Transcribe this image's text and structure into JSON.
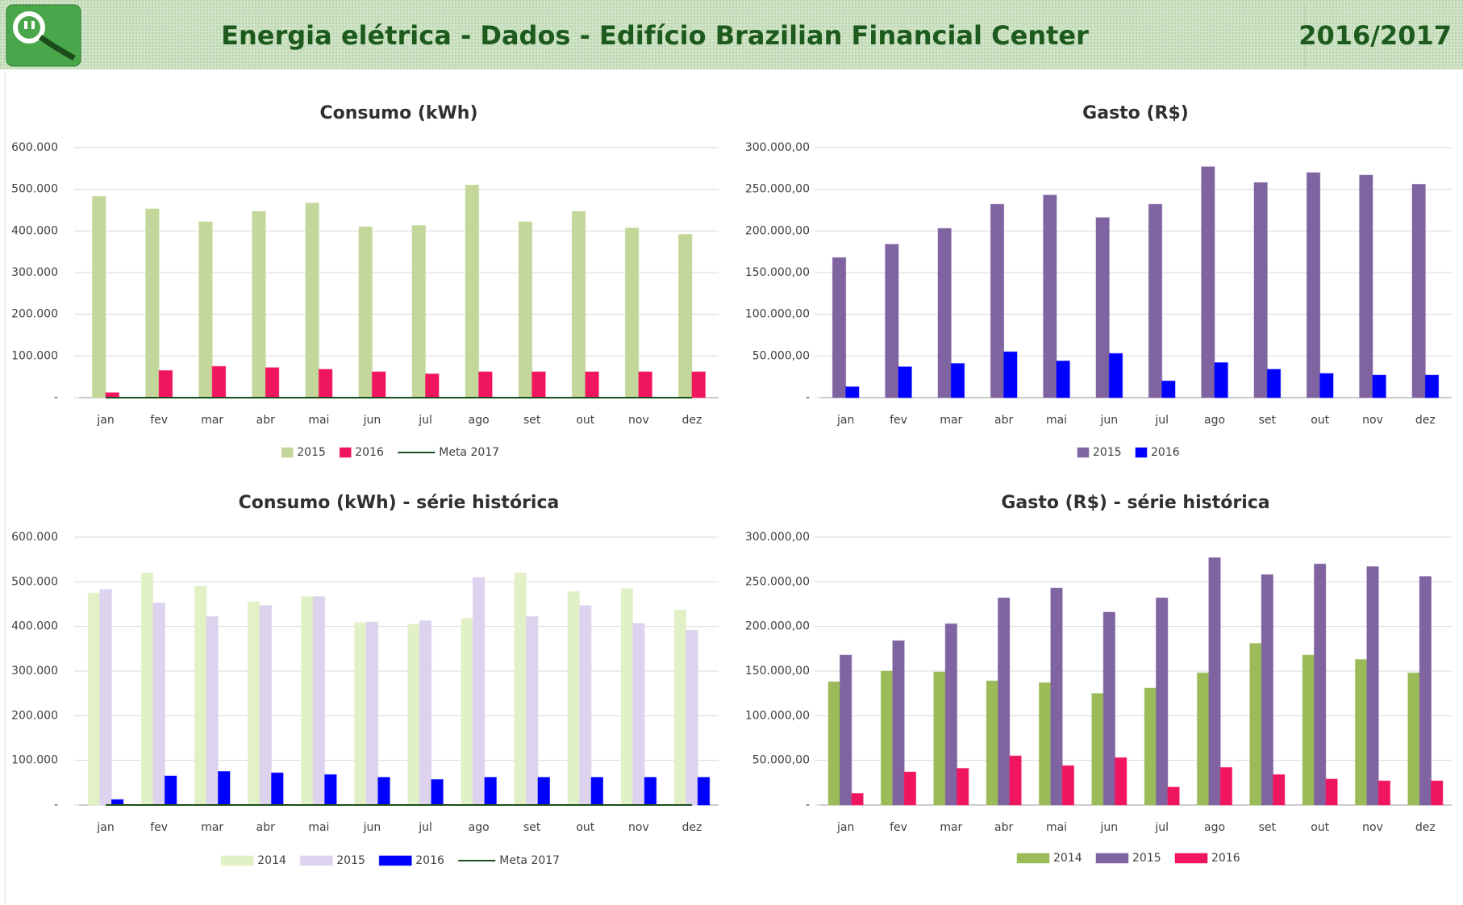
{
  "header": {
    "title": "Energia elétrica - Dados - Edifício Brazilian Financial Center",
    "period": "2016/2017"
  },
  "chart_data": [
    {
      "type": "bar",
      "title": "Consumo (kWh)",
      "categories": [
        "jan",
        "fev",
        "mar",
        "abr",
        "mai",
        "jun",
        "jul",
        "ago",
        "set",
        "out",
        "nov",
        "dez"
      ],
      "series": [
        {
          "name": "2015",
          "color": "#c4d79b",
          "values": [
            483000,
            453000,
            422000,
            447000,
            467000,
            410000,
            413000,
            510000,
            422000,
            447000,
            407000,
            392000
          ]
        },
        {
          "name": "2016",
          "color": "#f0155f",
          "values": [
            12000,
            65000,
            75000,
            72000,
            68000,
            62000,
            57000,
            62000,
            62000,
            62000,
            62000,
            62000
          ]
        },
        {
          "name": "Meta 2017",
          "color": "#1a4d1a",
          "kind": "line",
          "values": [
            0,
            0,
            0,
            0,
            0,
            0,
            0,
            0,
            0,
            0,
            0,
            0
          ]
        }
      ],
      "ylim": [
        0,
        600000
      ],
      "yticks": [
        {
          "value": 0,
          "label": "-"
        },
        {
          "value": 100000,
          "label": "100.000"
        },
        {
          "value": 200000,
          "label": "200.000"
        },
        {
          "value": 300000,
          "label": "300.000"
        },
        {
          "value": 400000,
          "label": "400.000"
        },
        {
          "value": 500000,
          "label": "500.000"
        },
        {
          "value": 600000,
          "label": "600.000"
        }
      ],
      "grid": true
    },
    {
      "type": "bar",
      "title": "Gasto (R$)",
      "categories": [
        "jan",
        "fev",
        "mar",
        "abr",
        "mai",
        "jun",
        "jul",
        "ago",
        "set",
        "out",
        "nov",
        "dez"
      ],
      "series": [
        {
          "name": "2015",
          "color": "#8064a2",
          "values": [
            168000,
            184000,
            203000,
            232000,
            243000,
            216000,
            232000,
            277000,
            258000,
            270000,
            267000,
            256000
          ]
        },
        {
          "name": "2016",
          "color": "#0000ff",
          "values": [
            13000,
            37000,
            41000,
            55000,
            44000,
            53000,
            20000,
            42000,
            34000,
            29000,
            27000,
            27000
          ]
        }
      ],
      "ylim": [
        0,
        300000
      ],
      "yticks": [
        {
          "value": 0,
          "label": "-"
        },
        {
          "value": 50000,
          "label": "50.000,00"
        },
        {
          "value": 100000,
          "label": "100.000,00"
        },
        {
          "value": 150000,
          "label": "150.000,00"
        },
        {
          "value": 200000,
          "label": "200.000,00"
        },
        {
          "value": 250000,
          "label": "250.000,00"
        },
        {
          "value": 300000,
          "label": "300.000,00"
        }
      ],
      "grid": true
    },
    {
      "type": "bar",
      "title": "Consumo (kWh) - série histórica",
      "categories": [
        "jan",
        "fev",
        "mar",
        "abr",
        "mai",
        "jun",
        "jul",
        "ago",
        "set",
        "out",
        "nov",
        "dez"
      ],
      "series": [
        {
          "name": "2014",
          "color": "#e2f0c6",
          "values": [
            475000,
            520000,
            490000,
            455000,
            467000,
            408000,
            405000,
            418000,
            520000,
            478000,
            485000,
            437000
          ]
        },
        {
          "name": "2015",
          "color": "#ddd3ee",
          "values": [
            483000,
            453000,
            422000,
            447000,
            467000,
            410000,
            413000,
            510000,
            422000,
            447000,
            407000,
            392000
          ]
        },
        {
          "name": "2016",
          "color": "#0000ff",
          "values": [
            12000,
            65000,
            75000,
            72000,
            68000,
            62000,
            57000,
            62000,
            62000,
            62000,
            62000,
            62000
          ]
        },
        {
          "name": "Meta 2017",
          "color": "#1a4d1a",
          "kind": "line",
          "values": [
            0,
            0,
            0,
            0,
            0,
            0,
            0,
            0,
            0,
            0,
            0,
            0
          ]
        }
      ],
      "ylim": [
        0,
        600000
      ],
      "yticks": [
        {
          "value": 0,
          "label": "-"
        },
        {
          "value": 100000,
          "label": "100.000"
        },
        {
          "value": 200000,
          "label": "200.000"
        },
        {
          "value": 300000,
          "label": "300.000"
        },
        {
          "value": 400000,
          "label": "400.000"
        },
        {
          "value": 500000,
          "label": "500.000"
        },
        {
          "value": 600000,
          "label": "600.000"
        }
      ],
      "grid": true
    },
    {
      "type": "bar",
      "title": "Gasto (R$) - série histórica",
      "categories": [
        "jan",
        "fev",
        "mar",
        "abr",
        "mai",
        "jun",
        "jul",
        "ago",
        "set",
        "out",
        "nov",
        "dez"
      ],
      "series": [
        {
          "name": "2014",
          "color": "#9bbb59",
          "values": [
            138000,
            150000,
            149000,
            139000,
            137000,
            125000,
            131000,
            148000,
            181000,
            168000,
            163000,
            148000
          ]
        },
        {
          "name": "2015",
          "color": "#8064a2",
          "values": [
            168000,
            184000,
            203000,
            232000,
            243000,
            216000,
            232000,
            277000,
            258000,
            270000,
            267000,
            256000
          ]
        },
        {
          "name": "2016",
          "color": "#f0155f",
          "values": [
            13000,
            37000,
            41000,
            55000,
            44000,
            53000,
            20000,
            42000,
            34000,
            29000,
            27000,
            27000
          ]
        }
      ],
      "ylim": [
        0,
        300000
      ],
      "yticks": [
        {
          "value": 0,
          "label": "-"
        },
        {
          "value": 50000,
          "label": "50.000,00"
        },
        {
          "value": 100000,
          "label": "100.000,00"
        },
        {
          "value": 150000,
          "label": "150.000,00"
        },
        {
          "value": 200000,
          "label": "200.000,00"
        },
        {
          "value": 250000,
          "label": "250.000,00"
        },
        {
          "value": 300000,
          "label": "300.000,00"
        }
      ],
      "grid": true
    }
  ]
}
